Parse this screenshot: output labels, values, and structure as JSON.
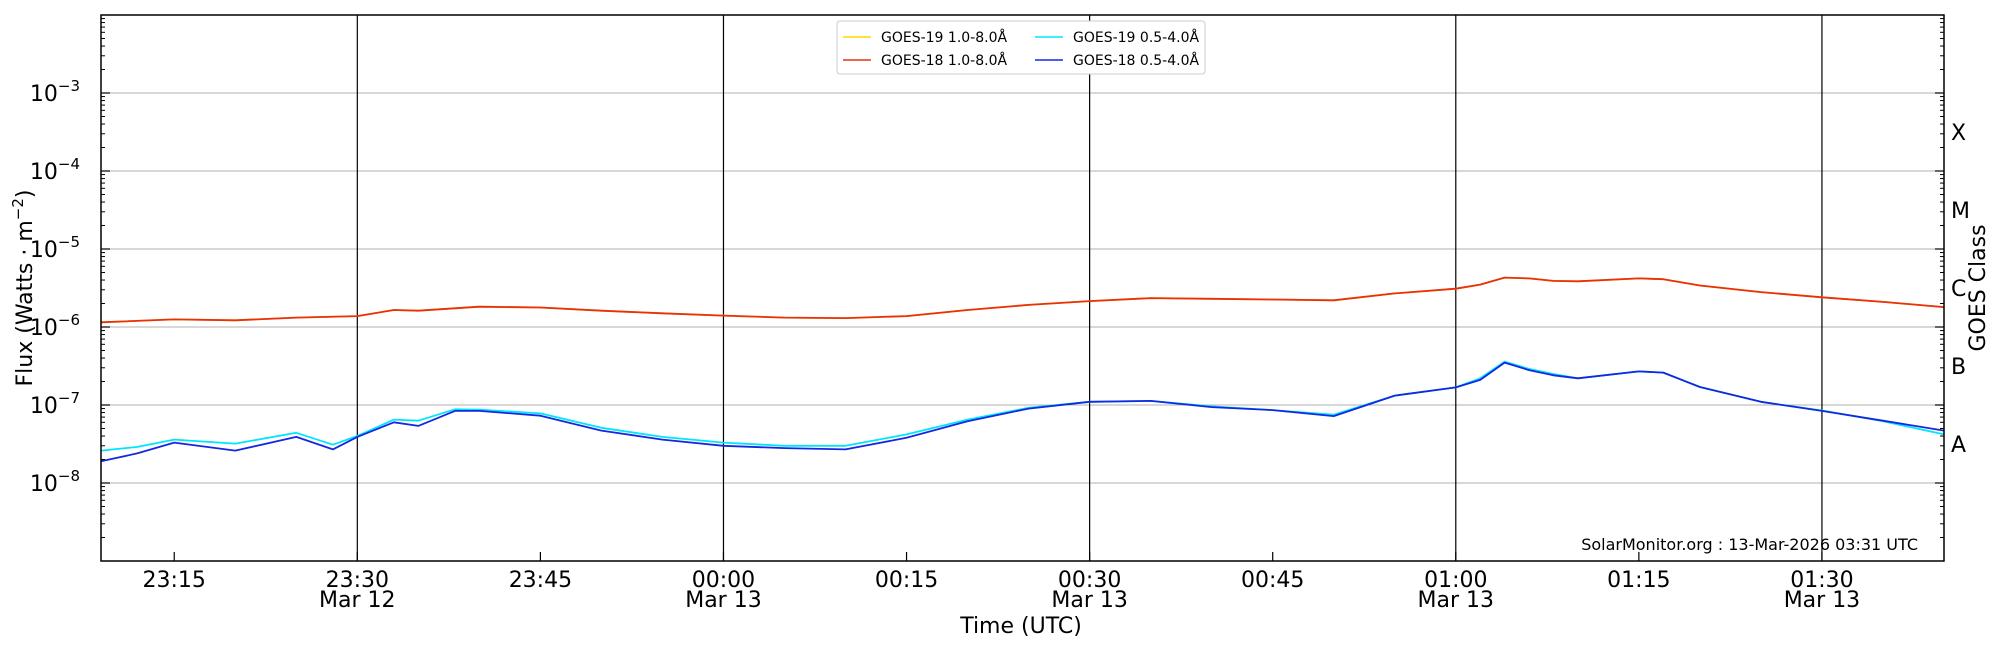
{
  "chart_data": {
    "type": "line",
    "xlabel": "Time (UTC)",
    "ylabel_main": "Flux (Watts · m",
    "ylabel_exp": "−2",
    "ylabel_close": ")",
    "right_ylabel": "GOES Class",
    "credit": "SolarMonitor.org : 13-Mar-2026 03:31 UTC",
    "xlim": [
      "23:09",
      "01:40"
    ],
    "y_log_range": [
      -9,
      -2
    ],
    "y_scale": "log",
    "grid": "horizontal",
    "legend_placement": "top-center",
    "x_ticks": [
      {
        "time": "23:15",
        "label": "23:15",
        "date": ""
      },
      {
        "time": "23:30",
        "label": "23:30",
        "date": "Mar 12"
      },
      {
        "time": "23:45",
        "label": "23:45",
        "date": ""
      },
      {
        "time": "00:00",
        "label": "00:00",
        "date": "Mar 13"
      },
      {
        "time": "00:15",
        "label": "00:15",
        "date": ""
      },
      {
        "time": "00:30",
        "label": "00:30",
        "date": "Mar 13"
      },
      {
        "time": "00:45",
        "label": "00:45",
        "date": ""
      },
      {
        "time": "01:00",
        "label": "01:00",
        "date": "Mar 13"
      },
      {
        "time": "01:15",
        "label": "01:15",
        "date": ""
      },
      {
        "time": "01:30",
        "label": "01:30",
        "date": "Mar 13"
      }
    ],
    "vlines": [
      "23:30",
      "00:00",
      "00:30",
      "01:00",
      "01:30"
    ],
    "y_ticks": [
      {
        "exp": -8,
        "base": "10",
        "sup": "−8"
      },
      {
        "exp": -7,
        "base": "10",
        "sup": "−7"
      },
      {
        "exp": -6,
        "base": "10",
        "sup": "−6"
      },
      {
        "exp": -5,
        "base": "10",
        "sup": "−5"
      },
      {
        "exp": -4,
        "base": "10",
        "sup": "−4"
      },
      {
        "exp": -3,
        "base": "10",
        "sup": "−3"
      }
    ],
    "goes_classes": [
      {
        "label": "A",
        "exp": -7.5
      },
      {
        "label": "B",
        "exp": -6.5
      },
      {
        "label": "C",
        "exp": -5.5
      },
      {
        "label": "M",
        "exp": -4.5
      },
      {
        "label": "X",
        "exp": -3.5
      }
    ],
    "series": [
      {
        "name": "GOES-19 1.0-8.0Å",
        "color": "#ffd700",
        "x": [
          "23:09",
          "23:15",
          "23:20",
          "23:25",
          "23:30",
          "23:33",
          "23:35",
          "23:40",
          "23:45",
          "23:50",
          "23:55",
          "00:00",
          "00:05",
          "00:10",
          "00:15",
          "00:20",
          "00:25",
          "00:30",
          "00:35",
          "00:40",
          "00:45",
          "00:50",
          "00:55",
          "01:00",
          "01:02",
          "01:04",
          "01:06",
          "01:08",
          "01:10",
          "01:15",
          "01:17",
          "01:20",
          "01:25",
          "01:30",
          "01:35",
          "01:40"
        ],
        "y": [
          1.15e-06,
          1.25e-06,
          1.22e-06,
          1.32e-06,
          1.38e-06,
          1.65e-06,
          1.62e-06,
          1.82e-06,
          1.78e-06,
          1.62e-06,
          1.5e-06,
          1.4e-06,
          1.32e-06,
          1.3e-06,
          1.38e-06,
          1.65e-06,
          1.92e-06,
          2.15e-06,
          2.35e-06,
          2.3e-06,
          2.25e-06,
          2.2e-06,
          2.7e-06,
          3.1e-06,
          3.5e-06,
          4.3e-06,
          4.2e-06,
          3.9e-06,
          3.85e-06,
          4.2e-06,
          4.1e-06,
          3.4e-06,
          2.8e-06,
          2.4e-06,
          2.1e-06,
          1.8e-06
        ]
      },
      {
        "name": "GOES-18 1.0-8.0Å",
        "color": "#e83010",
        "x": [
          "23:09",
          "23:15",
          "23:20",
          "23:25",
          "23:30",
          "23:33",
          "23:35",
          "23:40",
          "23:45",
          "23:50",
          "23:55",
          "00:00",
          "00:05",
          "00:10",
          "00:15",
          "00:20",
          "00:25",
          "00:30",
          "00:35",
          "00:40",
          "00:45",
          "00:50",
          "00:55",
          "01:00",
          "01:02",
          "01:04",
          "01:06",
          "01:08",
          "01:10",
          "01:15",
          "01:17",
          "01:20",
          "01:25",
          "01:30",
          "01:35",
          "01:40"
        ],
        "y": [
          1.15e-06,
          1.25e-06,
          1.22e-06,
          1.32e-06,
          1.38e-06,
          1.65e-06,
          1.62e-06,
          1.82e-06,
          1.78e-06,
          1.62e-06,
          1.5e-06,
          1.4e-06,
          1.32e-06,
          1.3e-06,
          1.38e-06,
          1.65e-06,
          1.92e-06,
          2.15e-06,
          2.35e-06,
          2.3e-06,
          2.25e-06,
          2.2e-06,
          2.7e-06,
          3.1e-06,
          3.5e-06,
          4.3e-06,
          4.2e-06,
          3.9e-06,
          3.85e-06,
          4.2e-06,
          4.1e-06,
          3.4e-06,
          2.8e-06,
          2.4e-06,
          2.1e-06,
          1.8e-06
        ]
      },
      {
        "name": "GOES-19 0.5-4.0Å",
        "color": "#00e5ff",
        "x": [
          "23:09",
          "23:12",
          "23:15",
          "23:20",
          "23:25",
          "23:28",
          "23:30",
          "23:33",
          "23:35",
          "23:38",
          "23:40",
          "23:45",
          "23:50",
          "23:55",
          "00:00",
          "00:05",
          "00:10",
          "00:15",
          "00:20",
          "00:25",
          "00:30",
          "00:35",
          "00:40",
          "00:45",
          "00:50",
          "00:55",
          "01:00",
          "01:02",
          "01:04",
          "01:06",
          "01:08",
          "01:10",
          "01:15",
          "01:17",
          "01:20",
          "01:25",
          "01:30",
          "01:35",
          "01:40"
        ],
        "y": [
          2.6e-08,
          2.9e-08,
          3.6e-08,
          3.2e-08,
          4.4e-08,
          3.1e-08,
          4e-08,
          6.5e-08,
          6.3e-08,
          8.8e-08,
          8.7e-08,
          7.8e-08,
          5.1e-08,
          3.9e-08,
          3.3e-08,
          3e-08,
          3e-08,
          4.2e-08,
          6.5e-08,
          9.2e-08,
          1.1e-07,
          1.13e-07,
          9.6e-08,
          8.6e-08,
          7.5e-08,
          1.32e-07,
          1.68e-07,
          2.2e-07,
          3.6e-07,
          2.9e-07,
          2.5e-07,
          2.2e-07,
          2.7e-07,
          2.6e-07,
          1.7e-07,
          1.1e-07,
          8.5e-08,
          6.2e-08,
          4.2e-08
        ]
      },
      {
        "name": "GOES-18 0.5-4.0Å",
        "color": "#1428e0",
        "x": [
          "23:09",
          "23:12",
          "23:15",
          "23:20",
          "23:25",
          "23:28",
          "23:30",
          "23:33",
          "23:35",
          "23:38",
          "23:40",
          "23:45",
          "23:50",
          "23:55",
          "00:00",
          "00:05",
          "00:10",
          "00:15",
          "00:20",
          "00:25",
          "00:30",
          "00:35",
          "00:40",
          "00:45",
          "00:50",
          "00:55",
          "01:00",
          "01:02",
          "01:04",
          "01:06",
          "01:08",
          "01:10",
          "01:15",
          "01:17",
          "01:20",
          "01:25",
          "01:30",
          "01:35",
          "01:40"
        ],
        "y": [
          1.9e-08,
          2.4e-08,
          3.3e-08,
          2.6e-08,
          3.9e-08,
          2.7e-08,
          3.9e-08,
          6e-08,
          5.4e-08,
          8.4e-08,
          8.4e-08,
          7.3e-08,
          4.7e-08,
          3.6e-08,
          3e-08,
          2.8e-08,
          2.7e-08,
          3.8e-08,
          6.2e-08,
          9e-08,
          1.1e-07,
          1.13e-07,
          9.4e-08,
          8.6e-08,
          7.2e-08,
          1.32e-07,
          1.68e-07,
          2.1e-07,
          3.5e-07,
          2.8e-07,
          2.4e-07,
          2.2e-07,
          2.7e-07,
          2.6e-07,
          1.7e-07,
          1.1e-07,
          8.4e-08,
          6.3e-08,
          4.7e-08
        ]
      }
    ]
  }
}
